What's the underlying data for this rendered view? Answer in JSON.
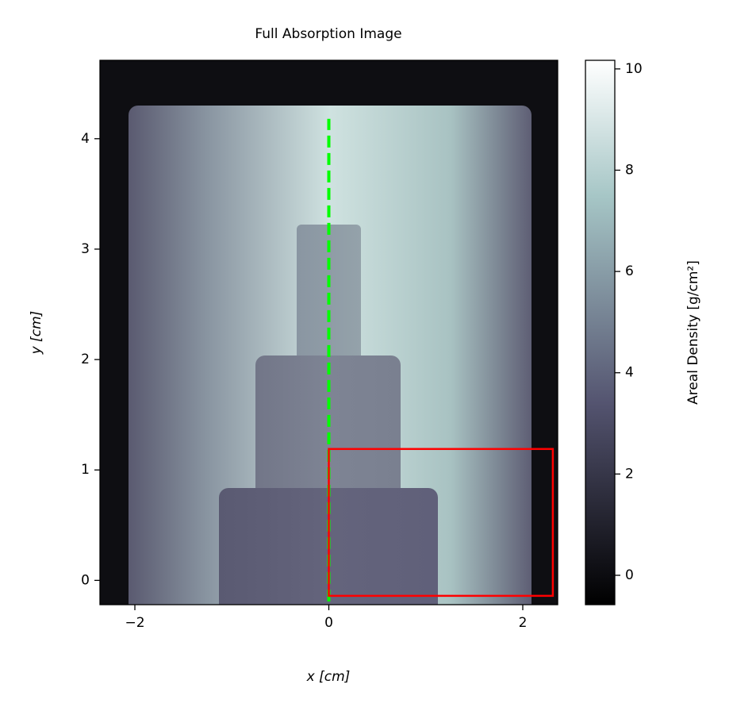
{
  "chart_data": {
    "type": "image",
    "title": "Full Absorption Image",
    "x_label": "x [cm]",
    "y_label": "y [cm]",
    "xlim": [
      -2.36,
      2.36
    ],
    "ylim": [
      -0.22,
      4.71
    ],
    "xticks": [
      {
        "value": -2,
        "label": "−2"
      },
      0,
      2
    ],
    "yticks": [
      0,
      1,
      2,
      3,
      4
    ],
    "colorbar": {
      "label": "Areal Density [g/cm²]",
      "lim": [
        -0.58,
        10.17
      ],
      "ticks": [
        0,
        2,
        4,
        6,
        8,
        10
      ]
    },
    "vline": {
      "x": 0,
      "y": [
        -0.19,
        4.18
      ],
      "color": "#00ff00"
    },
    "rectangle": {
      "x": [
        0,
        2.31
      ],
      "y": [
        -0.14,
        1.19
      ],
      "color": "#ff0000"
    }
  }
}
